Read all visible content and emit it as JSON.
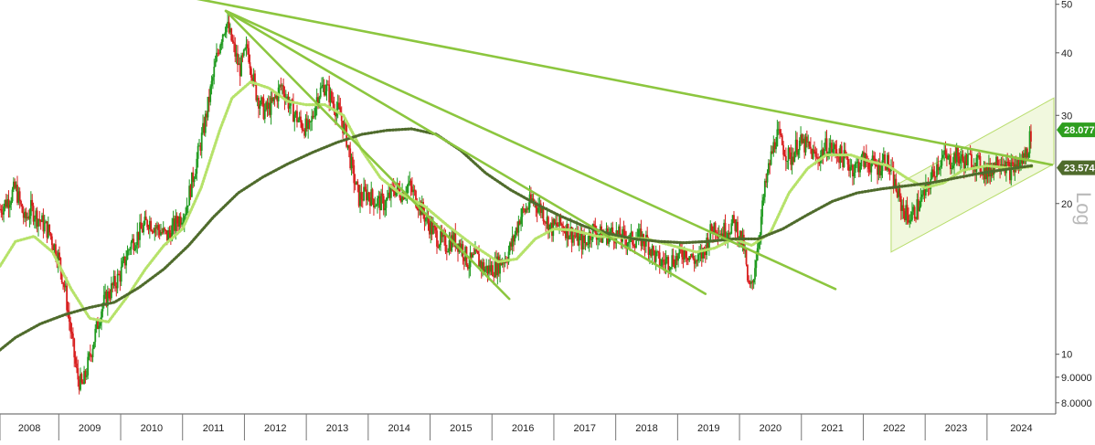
{
  "chart_data": {
    "type": "candlestick",
    "scale": "log",
    "ylim": [
      7.6,
      51
    ],
    "xlim": [
      2007.55,
      2024.58
    ],
    "y_ticks": [
      {
        "value": 50,
        "label": "50"
      },
      {
        "value": 40,
        "label": "40"
      },
      {
        "value": 30,
        "label": "30"
      },
      {
        "value": 20,
        "label": "20"
      },
      {
        "value": 10,
        "label": "10"
      },
      {
        "value": 9,
        "label": "9.0000"
      },
      {
        "value": 8,
        "label": "8.0000"
      }
    ],
    "x_ticks": [
      "2008",
      "2009",
      "2010",
      "2011",
      "2012",
      "2013",
      "2014",
      "2015",
      "2016",
      "2017",
      "2018",
      "2019",
      "2020",
      "2021",
      "2022",
      "2023",
      "2024"
    ],
    "x_tick_positions": [
      2008,
      2009,
      2010,
      2011,
      2012,
      2013,
      2014,
      2015,
      2016,
      2017,
      2018,
      2019,
      2020,
      2021,
      2022,
      2023,
      2024
    ],
    "price_path": [
      [
        2007.55,
        19.5
      ],
      [
        2007.7,
        20.5
      ],
      [
        2007.8,
        21.5
      ],
      [
        2007.95,
        18.5
      ],
      [
        2008.05,
        19.5
      ],
      [
        2008.2,
        18.5
      ],
      [
        2008.35,
        17.5
      ],
      [
        2008.5,
        15.5
      ],
      [
        2008.6,
        13.5
      ],
      [
        2008.72,
        10.5
      ],
      [
        2008.8,
        9.0
      ],
      [
        2008.88,
        8.6
      ],
      [
        2008.95,
        9.3
      ],
      [
        2009.05,
        10.5
      ],
      [
        2009.2,
        12.5
      ],
      [
        2009.35,
        13.5
      ],
      [
        2009.5,
        14.5
      ],
      [
        2009.65,
        16.5
      ],
      [
        2009.8,
        17.5
      ],
      [
        2009.95,
        18.5
      ],
      [
        2010.1,
        17.8
      ],
      [
        2010.25,
        17.2
      ],
      [
        2010.4,
        18.3
      ],
      [
        2010.55,
        19.5
      ],
      [
        2010.7,
        23.5
      ],
      [
        2010.85,
        28.5
      ],
      [
        2010.95,
        33.5
      ],
      [
        2011.05,
        39
      ],
      [
        2011.12,
        43
      ],
      [
        2011.2,
        46
      ],
      [
        2011.3,
        42
      ],
      [
        2011.42,
        37
      ],
      [
        2011.55,
        41
      ],
      [
        2011.68,
        33.5
      ],
      [
        2011.82,
        30.5
      ],
      [
        2011.95,
        31.5
      ],
      [
        2012.1,
        34.5
      ],
      [
        2012.25,
        31
      ],
      [
        2012.4,
        29
      ],
      [
        2012.55,
        28
      ],
      [
        2012.68,
        33
      ],
      [
        2012.8,
        34.5
      ],
      [
        2012.92,
        32
      ],
      [
        2013.05,
        30
      ],
      [
        2013.15,
        27
      ],
      [
        2013.25,
        23
      ],
      [
        2013.35,
        20.5
      ],
      [
        2013.48,
        21
      ],
      [
        2013.62,
        20.2
      ],
      [
        2013.78,
        20
      ],
      [
        2013.92,
        21.5
      ],
      [
        2014.05,
        21
      ],
      [
        2014.15,
        21.8
      ],
      [
        2014.3,
        20.2
      ],
      [
        2014.45,
        18.5
      ],
      [
        2014.6,
        17.2
      ],
      [
        2014.75,
        16.5
      ],
      [
        2014.88,
        17
      ],
      [
        2015.0,
        16.5
      ],
      [
        2015.12,
        15.2
      ],
      [
        2015.25,
        15.6
      ],
      [
        2015.38,
        14.8
      ],
      [
        2015.5,
        14.8
      ],
      [
        2015.62,
        15.2
      ],
      [
        2015.75,
        15.8
      ],
      [
        2015.85,
        17
      ],
      [
        2015.95,
        18.8
      ],
      [
        2016.05,
        19.5
      ],
      [
        2016.15,
        20.3
      ],
      [
        2016.3,
        19.5
      ],
      [
        2016.45,
        17.8
      ],
      [
        2016.6,
        18.2
      ],
      [
        2016.75,
        17.6
      ],
      [
        2016.88,
        17
      ],
      [
        2017.0,
        16.6
      ],
      [
        2017.12,
        17.8
      ],
      [
        2017.28,
        17.2
      ],
      [
        2017.45,
        17.5
      ],
      [
        2017.6,
        17.1
      ],
      [
        2017.75,
        16.9
      ],
      [
        2017.88,
        17.1
      ],
      [
        2018.0,
        16.8
      ],
      [
        2018.12,
        15.8
      ],
      [
        2018.22,
        15.2
      ],
      [
        2018.35,
        15.4
      ],
      [
        2018.5,
        15.6
      ],
      [
        2018.62,
        16.2
      ],
      [
        2018.72,
        15.6
      ],
      [
        2018.82,
        15.3
      ],
      [
        2018.92,
        16.0
      ],
      [
        2019.0,
        17.2
      ],
      [
        2019.1,
        18.2
      ],
      [
        2019.2,
        17.5
      ],
      [
        2019.3,
        17.8
      ],
      [
        2019.42,
        18.3
      ],
      [
        2019.52,
        17.0
      ],
      [
        2019.58,
        16.2
      ],
      [
        2019.64,
        13.5
      ],
      [
        2019.7,
        13.6
      ],
      [
        2019.76,
        15.5
      ],
      [
        2019.82,
        17.5
      ],
      [
        2019.9,
        21
      ],
      [
        2020.0,
        24.5
      ],
      [
        2020.1,
        27.5
      ],
      [
        2020.2,
        26
      ],
      [
        2020.32,
        24.5
      ],
      [
        2020.45,
        26.5
      ],
      [
        2020.6,
        26
      ],
      [
        2020.75,
        24.5
      ],
      [
        2020.9,
        26
      ],
      [
        2021.05,
        25.5
      ],
      [
        2021.2,
        24.5
      ],
      [
        2021.35,
        23.5
      ],
      [
        2021.5,
        24.5
      ],
      [
        2021.62,
        24
      ],
      [
        2021.75,
        23.6
      ],
      [
        2021.85,
        24.8
      ],
      [
        2021.92,
        23.5
      ],
      [
        2022.0,
        22
      ],
      [
        2022.1,
        20
      ],
      [
        2022.2,
        19
      ],
      [
        2022.28,
        18.8
      ],
      [
        2022.38,
        19.8
      ],
      [
        2022.5,
        21
      ],
      [
        2022.6,
        22.5
      ],
      [
        2022.7,
        24
      ],
      [
        2022.8,
        24.8
      ],
      [
        2022.9,
        24.2
      ],
      [
        2023.0,
        25
      ],
      [
        2023.12,
        24.2
      ],
      [
        2023.25,
        24.5
      ],
      [
        2023.38,
        23.8
      ],
      [
        2023.52,
        23
      ],
      [
        2023.65,
        24.4
      ],
      [
        2023.75,
        24.6
      ],
      [
        2023.85,
        23.2
      ],
      [
        2023.95,
        23.7
      ],
      [
        2024.05,
        24.2
      ],
      [
        2024.15,
        25.5
      ],
      [
        2024.22,
        28.07
      ]
    ],
    "moving_averages": [
      {
        "color": "#b6e26a",
        "style": "dotted",
        "points": [
          [
            2007.55,
            15.0
          ],
          [
            2007.8,
            16.8
          ],
          [
            2008.1,
            17.2
          ],
          [
            2008.4,
            16.0
          ],
          [
            2008.7,
            13.5
          ],
          [
            2009.0,
            11.8
          ],
          [
            2009.3,
            11.6
          ],
          [
            2009.6,
            13.0
          ],
          [
            2009.9,
            14.8
          ],
          [
            2010.2,
            16.5
          ],
          [
            2010.5,
            17.8
          ],
          [
            2010.8,
            21.5
          ],
          [
            2011.1,
            28.0
          ],
          [
            2011.3,
            32.5
          ],
          [
            2011.6,
            35.0
          ],
          [
            2011.9,
            34.0
          ],
          [
            2012.2,
            32.0
          ],
          [
            2012.5,
            31.5
          ],
          [
            2012.8,
            31.5
          ],
          [
            2013.1,
            30.0
          ],
          [
            2013.4,
            25.5
          ],
          [
            2013.7,
            22.5
          ],
          [
            2014.0,
            21.0
          ],
          [
            2014.4,
            19.8
          ],
          [
            2014.8,
            18.0
          ],
          [
            2015.2,
            16.5
          ],
          [
            2015.6,
            15.3
          ],
          [
            2015.9,
            15.5
          ],
          [
            2016.2,
            17.0
          ],
          [
            2016.5,
            17.8
          ],
          [
            2016.8,
            17.7
          ],
          [
            2017.2,
            17.2
          ],
          [
            2017.6,
            17.1
          ],
          [
            2018.0,
            17.0
          ],
          [
            2018.4,
            16.5
          ],
          [
            2018.8,
            16.0
          ],
          [
            2019.1,
            16.3
          ],
          [
            2019.4,
            17.0
          ],
          [
            2019.7,
            16.5
          ],
          [
            2020.0,
            17.5
          ],
          [
            2020.3,
            21.0
          ],
          [
            2020.6,
            23.5
          ],
          [
            2020.9,
            25.0
          ],
          [
            2021.3,
            25.0
          ],
          [
            2021.6,
            24.3
          ],
          [
            2021.9,
            23.8
          ],
          [
            2022.2,
            22.5
          ],
          [
            2022.5,
            21.5
          ],
          [
            2022.8,
            22.0
          ],
          [
            2023.1,
            23.3
          ],
          [
            2023.5,
            23.8
          ],
          [
            2023.9,
            23.5
          ],
          [
            2024.22,
            23.7
          ]
        ]
      },
      {
        "color": "#4f6b2c",
        "style": "dotted",
        "points": [
          [
            2007.55,
            10.2
          ],
          [
            2007.8,
            10.8
          ],
          [
            2008.2,
            11.5
          ],
          [
            2008.6,
            12.0
          ],
          [
            2009.0,
            12.4
          ],
          [
            2009.4,
            12.7
          ],
          [
            2009.8,
            13.6
          ],
          [
            2010.2,
            14.8
          ],
          [
            2010.6,
            16.5
          ],
          [
            2011.0,
            18.8
          ],
          [
            2011.4,
            21.0
          ],
          [
            2011.8,
            22.6
          ],
          [
            2012.2,
            24.0
          ],
          [
            2012.6,
            25.3
          ],
          [
            2013.0,
            26.5
          ],
          [
            2013.4,
            27.5
          ],
          [
            2013.8,
            28.0
          ],
          [
            2014.2,
            28.2
          ],
          [
            2014.6,
            27.5
          ],
          [
            2015.0,
            25.5
          ],
          [
            2015.4,
            23.0
          ],
          [
            2015.8,
            21.3
          ],
          [
            2016.2,
            20.0
          ],
          [
            2016.6,
            18.9
          ],
          [
            2017.0,
            18.0
          ],
          [
            2017.4,
            17.4
          ],
          [
            2017.8,
            17.0
          ],
          [
            2018.2,
            16.8
          ],
          [
            2018.6,
            16.7
          ],
          [
            2019.0,
            16.8
          ],
          [
            2019.4,
            17.0
          ],
          [
            2019.8,
            17.0
          ],
          [
            2020.2,
            17.8
          ],
          [
            2020.6,
            19.0
          ],
          [
            2021.0,
            20.2
          ],
          [
            2021.4,
            21.0
          ],
          [
            2021.8,
            21.4
          ],
          [
            2022.2,
            21.7
          ],
          [
            2022.6,
            22.0
          ],
          [
            2023.0,
            22.5
          ],
          [
            2023.4,
            23.0
          ],
          [
            2023.8,
            23.4
          ],
          [
            2024.22,
            23.8
          ]
        ]
      }
    ],
    "trendlines": [
      {
        "x1": 2010.65,
        "y1": 51.5,
        "x2": 2024.55,
        "y2": 23.9
      },
      {
        "x1": 2011.2,
        "y1": 48.5,
        "x2": 2021.05,
        "y2": 13.5
      },
      {
        "x1": 2011.2,
        "y1": 48.5,
        "x2": 2018.95,
        "y2": 13.2
      },
      {
        "x1": 2011.2,
        "y1": 48.5,
        "x2": 2015.78,
        "y2": 12.9
      }
    ],
    "channel": [
      [
        2021.95,
        16.0
      ],
      [
        2024.58,
        24.0
      ],
      [
        2024.58,
        32.5
      ],
      [
        2021.95,
        21.5
      ]
    ],
    "price_tags": [
      {
        "value": 28.07,
        "label": "28.0771",
        "color": "#2e9e1f"
      },
      {
        "value": 23.57,
        "label": "23.5741",
        "color": "#4f6b2c"
      }
    ],
    "corner_label": "Log"
  }
}
